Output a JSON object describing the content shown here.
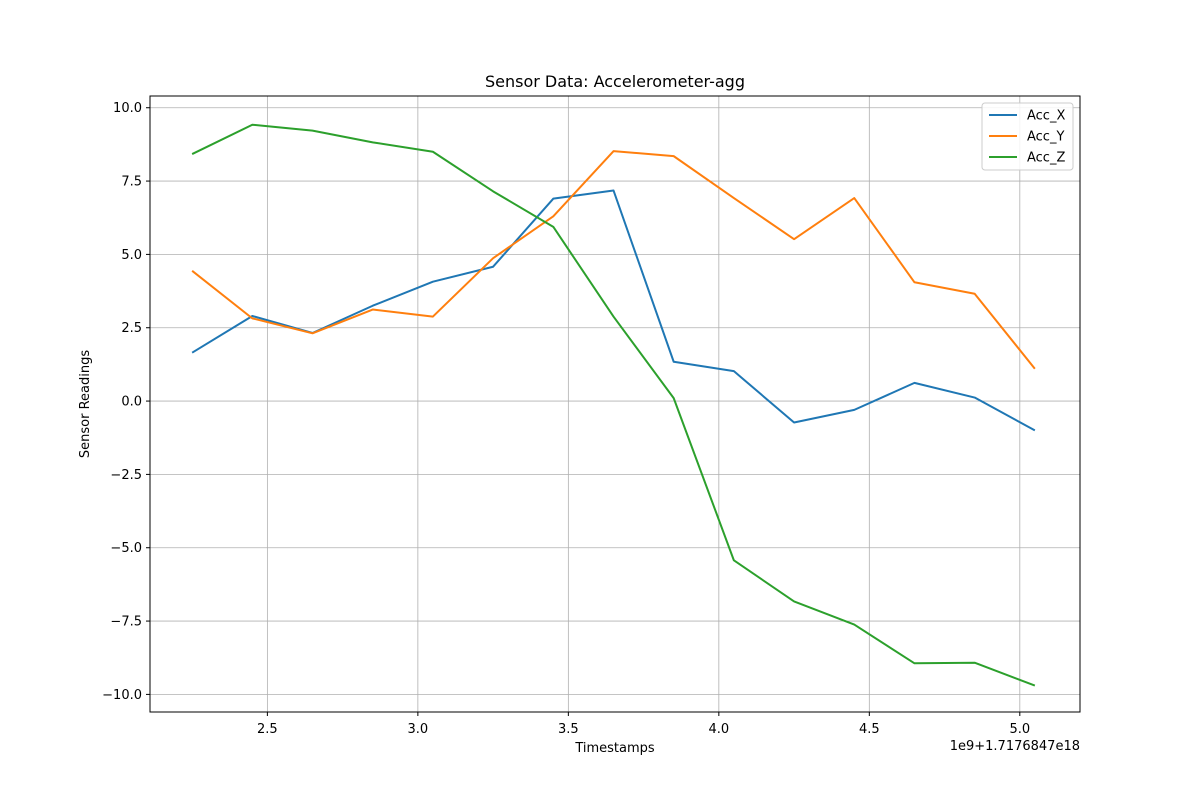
{
  "chart_data": {
    "type": "line",
    "title": "Sensor Data: Accelerometer-agg",
    "xlabel": "Timestamps",
    "ylabel": "Sensor Readings",
    "x_offset_label": "1e9+1.7176847e18",
    "xlim": [
      2.11,
      5.2
    ],
    "ylim": [
      -10.6,
      10.4
    ],
    "x_ticks": [
      2.5,
      3.0,
      3.5,
      4.0,
      4.5,
      5.0
    ],
    "x_tick_labels": [
      "2.5",
      "3.0",
      "3.5",
      "4.0",
      "4.5",
      "5.0"
    ],
    "y_ticks": [
      -10.0,
      -7.5,
      -5.0,
      -2.5,
      0.0,
      2.5,
      5.0,
      7.5,
      10.0
    ],
    "y_tick_labels": [
      "−10.0",
      "−7.5",
      "−5.0",
      "−2.5",
      "0.0",
      "2.5",
      "5.0",
      "7.5",
      "10.0"
    ],
    "grid": true,
    "legend_position": "top-right",
    "x": [
      2.25,
      2.45,
      2.65,
      2.85,
      3.05,
      3.25,
      3.45,
      3.65,
      3.85,
      4.05,
      4.25,
      4.45,
      4.65,
      4.85,
      5.05
    ],
    "series": [
      {
        "name": "Acc_X",
        "color": "#1f77b4",
        "values": [
          1.65,
          2.9,
          2.32,
          3.25,
          4.07,
          4.58,
          6.9,
          7.18,
          1.34,
          1.02,
          -0.73,
          -0.3,
          0.62,
          0.12,
          -1.0
        ]
      },
      {
        "name": "Acc_Y",
        "color": "#ff7f0e",
        "values": [
          4.44,
          2.82,
          2.31,
          3.12,
          2.88,
          4.87,
          6.3,
          8.52,
          8.35,
          6.92,
          5.52,
          6.92,
          4.05,
          3.66,
          1.1
        ]
      },
      {
        "name": "Acc_Z",
        "color": "#2ca02c",
        "values": [
          8.42,
          9.42,
          9.22,
          8.82,
          8.5,
          7.15,
          5.94,
          2.88,
          0.1,
          -5.43,
          -6.83,
          -7.62,
          -8.94,
          -8.92,
          -9.7
        ]
      }
    ]
  }
}
